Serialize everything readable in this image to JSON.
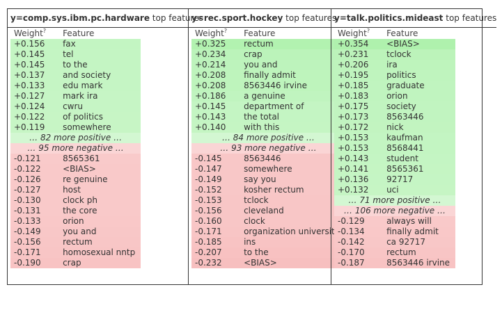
{
  "colors": {
    "positive_bg": "#aff1ad",
    "negative_bg": "#f6b3b3",
    "border": "#333333"
  },
  "header": {
    "weight_label": "Weight",
    "weight_mark": "?",
    "feature_label": "Feature"
  },
  "panels": [
    {
      "target": "y=comp.sys.ibm.pc.hardware",
      "suffix": " top features",
      "positive": [
        {
          "w": "+0.156",
          "f": "fax"
        },
        {
          "w": "+0.145",
          "f": "tel"
        },
        {
          "w": "+0.145",
          "f": "to the"
        },
        {
          "w": "+0.137",
          "f": "and society"
        },
        {
          "w": "+0.133",
          "f": "edu mark"
        },
        {
          "w": "+0.127",
          "f": "mark ira"
        },
        {
          "w": "+0.124",
          "f": "cwru"
        },
        {
          "w": "+0.122",
          "f": "of politics"
        },
        {
          "w": "+0.119",
          "f": "somewhere"
        }
      ],
      "more_positive": "… 82 more positive …",
      "more_negative": "… 95 more negative …",
      "negative": [
        {
          "w": "-0.121",
          "f": "8565361"
        },
        {
          "w": "-0.122",
          "f": "<BIAS>"
        },
        {
          "w": "-0.126",
          "f": "re genuine"
        },
        {
          "w": "-0.127",
          "f": "host"
        },
        {
          "w": "-0.130",
          "f": "clock ph"
        },
        {
          "w": "-0.131",
          "f": "the core"
        },
        {
          "w": "-0.133",
          "f": "orion"
        },
        {
          "w": "-0.149",
          "f": "you and"
        },
        {
          "w": "-0.156",
          "f": "rectum"
        },
        {
          "w": "-0.171",
          "f": "homosexual nntp"
        },
        {
          "w": "-0.190",
          "f": "crap"
        }
      ]
    },
    {
      "target": "y=rec.sport.hockey",
      "suffix": " top features",
      "positive": [
        {
          "w": "+0.325",
          "f": "rectum"
        },
        {
          "w": "+0.234",
          "f": "crap"
        },
        {
          "w": "+0.214",
          "f": "you and"
        },
        {
          "w": "+0.208",
          "f": "finally admit"
        },
        {
          "w": "+0.208",
          "f": "8563446 irvine"
        },
        {
          "w": "+0.186",
          "f": "a genuine"
        },
        {
          "w": "+0.145",
          "f": "department of"
        },
        {
          "w": "+0.143",
          "f": "the total"
        },
        {
          "w": "+0.140",
          "f": "with this"
        }
      ],
      "more_positive": "… 84 more positive …",
      "more_negative": "… 93 more negative …",
      "negative": [
        {
          "w": "-0.145",
          "f": "8563446"
        },
        {
          "w": "-0.147",
          "f": "somewhere"
        },
        {
          "w": "-0.149",
          "f": "say you"
        },
        {
          "w": "-0.152",
          "f": "kosher rectum"
        },
        {
          "w": "-0.153",
          "f": "tclock"
        },
        {
          "w": "-0.156",
          "f": "cleveland"
        },
        {
          "w": "-0.160",
          "f": "clock"
        },
        {
          "w": "-0.171",
          "f": "organization university"
        },
        {
          "w": "-0.185",
          "f": "ins"
        },
        {
          "w": "-0.207",
          "f": "to the"
        },
        {
          "w": "-0.232",
          "f": "<BIAS>"
        }
      ]
    },
    {
      "target": "y=talk.politics.mideast",
      "suffix": " top features",
      "positive": [
        {
          "w": "+0.354",
          "f": "<BIAS>"
        },
        {
          "w": "+0.231",
          "f": "tclock"
        },
        {
          "w": "+0.206",
          "f": "ira"
        },
        {
          "w": "+0.195",
          "f": "politics"
        },
        {
          "w": "+0.185",
          "f": "graduate"
        },
        {
          "w": "+0.183",
          "f": "orion"
        },
        {
          "w": "+0.175",
          "f": "society"
        },
        {
          "w": "+0.173",
          "f": "8563446"
        },
        {
          "w": "+0.172",
          "f": "nick"
        },
        {
          "w": "+0.153",
          "f": "kaufman"
        },
        {
          "w": "+0.153",
          "f": "8568441"
        },
        {
          "w": "+0.143",
          "f": "student"
        },
        {
          "w": "+0.141",
          "f": "8565361"
        },
        {
          "w": "+0.136",
          "f": "92717"
        },
        {
          "w": "+0.132",
          "f": "uci"
        }
      ],
      "more_positive": "… 71 more positive …",
      "more_negative": "… 106 more negative …",
      "negative": [
        {
          "w": "-0.129",
          "f": "always will"
        },
        {
          "w": "-0.134",
          "f": "finally admit"
        },
        {
          "w": "-0.142",
          "f": "ca 92717"
        },
        {
          "w": "-0.170",
          "f": "rectum"
        },
        {
          "w": "-0.187",
          "f": "8563446 irvine"
        }
      ]
    }
  ]
}
